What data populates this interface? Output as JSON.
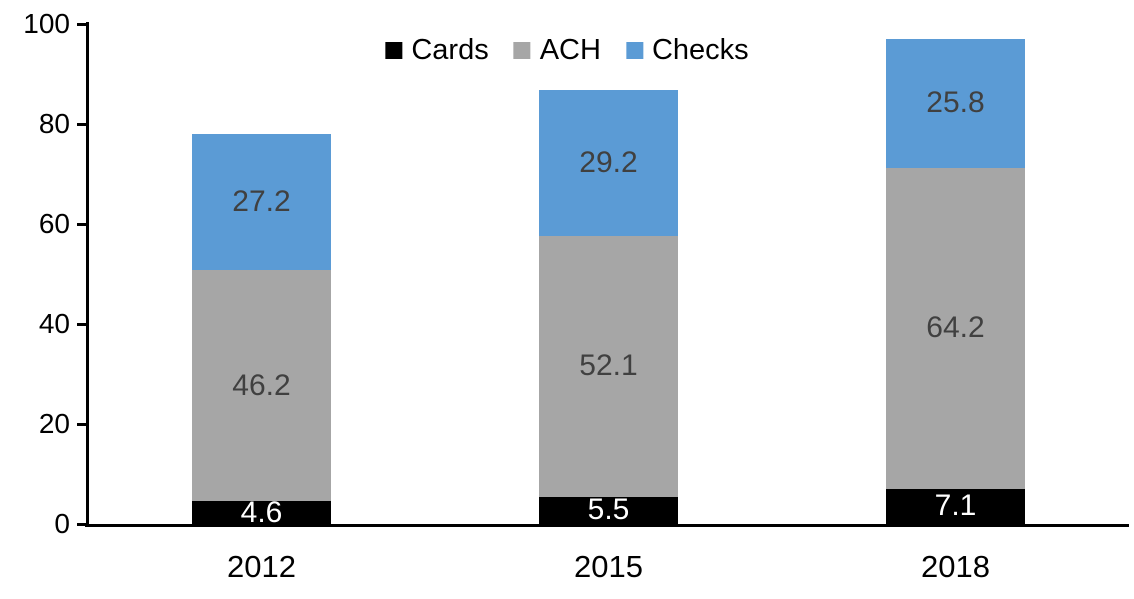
{
  "chart_data": {
    "type": "bar",
    "stacked": true,
    "categories": [
      "2012",
      "2015",
      "2018"
    ],
    "series": [
      {
        "name": "Cards",
        "color": "#000000",
        "label_color": "#ffffff",
        "values": [
          4.6,
          5.5,
          7.1
        ]
      },
      {
        "name": "ACH",
        "color": "#a6a6a6",
        "label_color": "#404040",
        "values": [
          46.2,
          52.1,
          64.2
        ]
      },
      {
        "name": "Checks",
        "color": "#5b9bd5",
        "label_color": "#404040",
        "values": [
          27.2,
          29.2,
          25.8
        ]
      }
    ],
    "stack_totals": [
      78.0,
      86.8,
      97.1
    ],
    "ylim": [
      0,
      100
    ],
    "yticks": [
      0,
      20,
      40,
      60,
      80,
      100
    ],
    "legend_position": "top",
    "grid": false,
    "axis_color": "#000000",
    "background_color": "#ffffff"
  }
}
